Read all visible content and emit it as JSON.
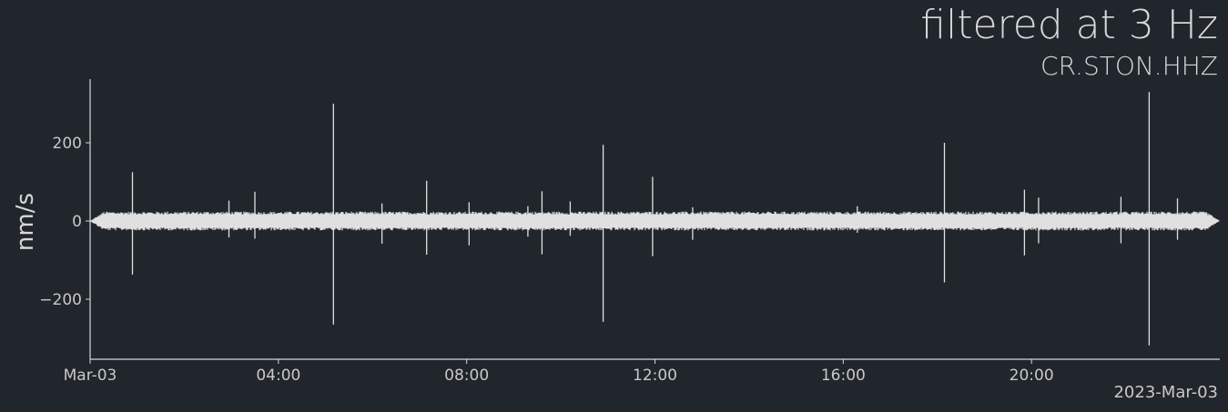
{
  "chart_data": {
    "type": "line",
    "title": "filtered at 3 Hz",
    "subtitle": "CR.STON.HHZ",
    "ylabel": "nm/s",
    "xlabel": "",
    "date_label": "2023-Mar-03",
    "x_range_hours": [
      0,
      24
    ],
    "ylim": [
      -350,
      360
    ],
    "x_ticks": [
      {
        "hour": 0,
        "label": "Mar-03"
      },
      {
        "hour": 4,
        "label": "04:00"
      },
      {
        "hour": 8,
        "label": "08:00"
      },
      {
        "hour": 12,
        "label": "12:00"
      },
      {
        "hour": 16,
        "label": "16:00"
      },
      {
        "hour": 20,
        "label": "20:00"
      }
    ],
    "y_ticks": [
      {
        "value": 200,
        "label": "200"
      },
      {
        "value": 0,
        "label": "0"
      },
      {
        "value": -200,
        "label": "−200"
      }
    ],
    "background_noise_amplitude": 22,
    "spikes": [
      {
        "hour": 0.9,
        "max": 125,
        "min": -137
      },
      {
        "hour": 2.95,
        "max": 52,
        "min": -42
      },
      {
        "hour": 3.5,
        "max": 75,
        "min": -45
      },
      {
        "hour": 5.17,
        "max": 300,
        "min": -265
      },
      {
        "hour": 6.2,
        "max": 45,
        "min": -58
      },
      {
        "hour": 7.15,
        "max": 103,
        "min": -86
      },
      {
        "hour": 8.05,
        "max": 48,
        "min": -62
      },
      {
        "hour": 9.3,
        "max": 38,
        "min": -40
      },
      {
        "hour": 9.6,
        "max": 76,
        "min": -85
      },
      {
        "hour": 10.2,
        "max": 50,
        "min": -38
      },
      {
        "hour": 10.9,
        "max": 195,
        "min": -258
      },
      {
        "hour": 11.95,
        "max": 113,
        "min": -90
      },
      {
        "hour": 12.8,
        "max": 35,
        "min": -48
      },
      {
        "hour": 16.3,
        "max": 38,
        "min": -30
      },
      {
        "hour": 18.15,
        "max": 200,
        "min": -157
      },
      {
        "hour": 19.85,
        "max": 80,
        "min": -88
      },
      {
        "hour": 20.15,
        "max": 60,
        "min": -57
      },
      {
        "hour": 21.9,
        "max": 62,
        "min": -57
      },
      {
        "hour": 22.5,
        "max": 330,
        "min": -318
      },
      {
        "hour": 23.1,
        "max": 58,
        "min": -48
      }
    ],
    "colors": {
      "background": "#21252c",
      "trace": "#e0e0e0",
      "axis": "#d8d8d8"
    }
  }
}
